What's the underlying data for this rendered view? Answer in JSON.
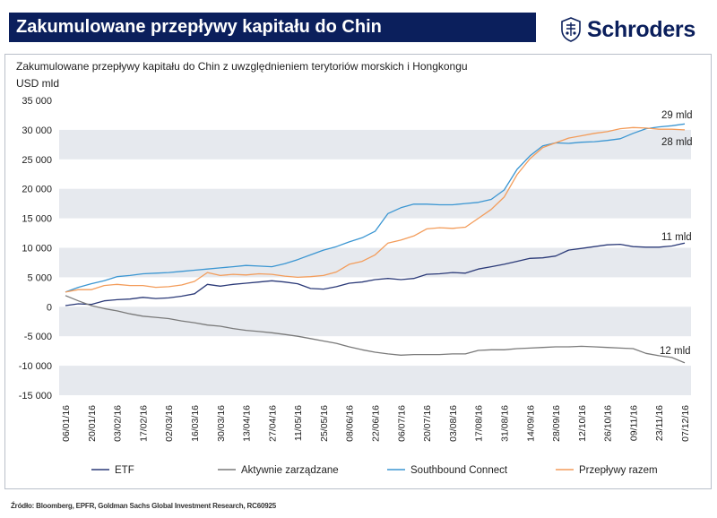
{
  "header": {
    "title": "Zakumulowane przepływy kapitału do Chin",
    "logo_text": "Schroders"
  },
  "colors": {
    "navy": "#0b1f5c",
    "band": "#e6e9ee"
  },
  "chart_data": {
    "type": "line",
    "subtitle": "Zakumulowane przepływy kapitału do Chin z uwzględnieniem terytoriów morskich i Hongkongu",
    "ylabel": "USD mld",
    "ylim": [
      -15000,
      35000
    ],
    "yticks": [
      "35 000",
      "30 000",
      "25 000",
      "20 000",
      "15 000",
      "10 000",
      "5 000",
      "0",
      "-5 000",
      "-10 000",
      "-15 000"
    ],
    "ytick_values": [
      35000,
      30000,
      25000,
      20000,
      15000,
      10000,
      5000,
      0,
      -5000,
      -10000,
      -15000
    ],
    "grid": "alternating horizontal bands",
    "legend": "bottom",
    "x": [
      "06/01/16",
      "13/01/16",
      "20/01/16",
      "27/01/16",
      "03/02/16",
      "10/02/16",
      "17/02/16",
      "24/02/16",
      "02/03/16",
      "09/03/16",
      "16/03/16",
      "23/03/16",
      "30/03/16",
      "06/04/16",
      "13/04/16",
      "20/04/16",
      "27/04/16",
      "04/05/16",
      "11/05/16",
      "18/05/16",
      "25/05/16",
      "01/06/16",
      "08/06/16",
      "15/06/16",
      "22/06/16",
      "29/06/16",
      "06/07/16",
      "13/07/16",
      "20/07/16",
      "27/07/16",
      "03/08/16",
      "10/08/16",
      "17/08/16",
      "24/08/16",
      "31/08/16",
      "07/09/16",
      "14/09/16",
      "21/09/16",
      "28/09/16",
      "05/10/16",
      "12/10/16",
      "19/10/16",
      "26/10/16",
      "02/11/16",
      "09/11/16",
      "16/11/16",
      "23/11/16",
      "30/11/16",
      "07/12/16"
    ],
    "xtick_labels": [
      "06/01/16",
      "20/01/16",
      "03/02/16",
      "17/02/16",
      "02/03/16",
      "16/03/16",
      "30/03/16",
      "13/04/16",
      "27/04/16",
      "11/05/16",
      "25/05/16",
      "08/06/16",
      "22/06/16",
      "06/07/16",
      "20/07/16",
      "03/08/16",
      "17/08/16",
      "31/08/16",
      "14/09/16",
      "28/09/16",
      "12/10/16",
      "26/10/16",
      "09/11/16",
      "23/11/16",
      "07/12/16"
    ],
    "series": [
      {
        "name": "ETF",
        "color": "#2b3a78",
        "values": [
          200,
          500,
          400,
          1000,
          1200,
          1300,
          1600,
          1400,
          1500,
          1800,
          2200,
          3800,
          3500,
          3800,
          4000,
          4200,
          4400,
          4200,
          3900,
          3100,
          3000,
          3400,
          4000,
          4200,
          4600,
          4800,
          4600,
          4800,
          5500,
          5600,
          5800,
          5700,
          6400,
          6800,
          7200,
          7700,
          8200,
          8300,
          8600,
          9600,
          9900,
          10200,
          10500,
          10600,
          10200,
          10100,
          10100,
          10300,
          10800
        ]
      },
      {
        "name": "Aktywnie zarządzane",
        "color": "#7a7a7a",
        "values": [
          1900,
          1000,
          200,
          -300,
          -700,
          -1200,
          -1600,
          -1800,
          -2000,
          -2400,
          -2700,
          -3100,
          -3300,
          -3700,
          -4000,
          -4200,
          -4400,
          -4700,
          -5000,
          -5400,
          -5800,
          -6200,
          -6800,
          -7300,
          -7700,
          -8000,
          -8200,
          -8100,
          -8100,
          -8100,
          -8000,
          -8000,
          -7400,
          -7300,
          -7300,
          -7100,
          -7000,
          -6900,
          -6800,
          -6800,
          -6700,
          -6800,
          -6900,
          -7000,
          -7100,
          -7900,
          -8300,
          -8600,
          -9500
        ]
      },
      {
        "name": "Southbound Connect",
        "color": "#3b96d2",
        "values": [
          2500,
          3300,
          3900,
          4400,
          5100,
          5300,
          5600,
          5700,
          5800,
          6000,
          6200,
          6400,
          6600,
          6800,
          7000,
          6900,
          6800,
          7300,
          8000,
          8800,
          9600,
          10200,
          11000,
          11700,
          12800,
          15800,
          16800,
          17400,
          17400,
          17300,
          17300,
          17500,
          17700,
          18200,
          19800,
          23300,
          25600,
          27300,
          27800,
          27700,
          27900,
          28000,
          28200,
          28500,
          29400,
          30200,
          30500,
          30700,
          31000
        ]
      },
      {
        "name": "Przepływy razem",
        "color": "#f39c5a",
        "values": [
          2500,
          2900,
          2900,
          3600,
          3800,
          3600,
          3600,
          3300,
          3400,
          3700,
          4300,
          5800,
          5300,
          5500,
          5400,
          5600,
          5500,
          5200,
          5000,
          5100,
          5300,
          5900,
          7200,
          7700,
          8800,
          10800,
          11300,
          12000,
          13200,
          13400,
          13300,
          13500,
          15000,
          16500,
          18600,
          22400,
          25100,
          27000,
          27800,
          28600,
          29000,
          29400,
          29700,
          30200,
          30400,
          30300,
          30100,
          30100,
          30000
        ]
      }
    ],
    "annotations": [
      "29 mld",
      "28 mld",
      "11 mld",
      "12 mld"
    ]
  },
  "legend": {
    "items": [
      "ETF",
      "Aktywnie zarządzane",
      "Southbound Connect",
      "Przepływy razem"
    ]
  },
  "footer": {
    "source": "Źródło: Bloomberg, EPFR, Goldman Sachs Global Investment Research, RC60925"
  }
}
